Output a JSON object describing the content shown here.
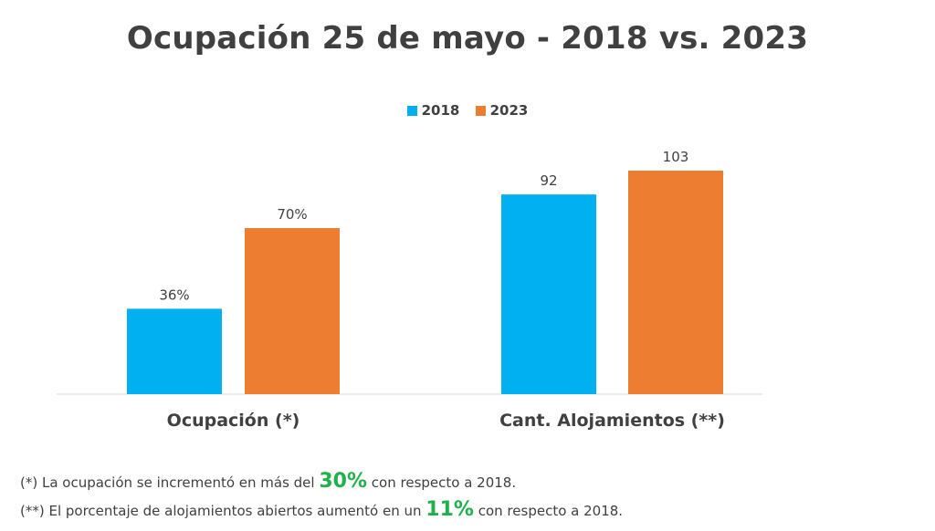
{
  "chart_data": {
    "type": "bar",
    "title": "Ocupación 25 de mayo - 2018 vs. 2023",
    "legend_position": "top-center",
    "grid": false,
    "groups": [
      {
        "category": "Ocupación (*)",
        "bars": [
          {
            "series": "2018",
            "value": 36,
            "label": "36%"
          },
          {
            "series": "2023",
            "value": 70,
            "label": "70%"
          }
        ]
      },
      {
        "category": "Cant. Alojamientos (**)",
        "bars": [
          {
            "series": "2018",
            "value": 92,
            "label": "92"
          },
          {
            "series": "2023",
            "value": 103,
            "label": "103"
          }
        ]
      }
    ],
    "series": [
      {
        "name": "2018",
        "color": "#00b0f0"
      },
      {
        "name": "2023",
        "color": "#ed7d31"
      }
    ],
    "colors": {
      "2018": "#00b0f0",
      "2023": "#ed7d31"
    }
  },
  "footnotes": [
    {
      "prefix": "(*) La ocupación se incrementó en más del ",
      "highlight": "30%",
      "suffix": " con respecto a 2018."
    },
    {
      "prefix": "(**) El porcentaje de alojamientos abiertos aumentó en un ",
      "highlight": "11%",
      "suffix": " con respecto a 2018."
    }
  ],
  "highlight_color": "#21b04b"
}
